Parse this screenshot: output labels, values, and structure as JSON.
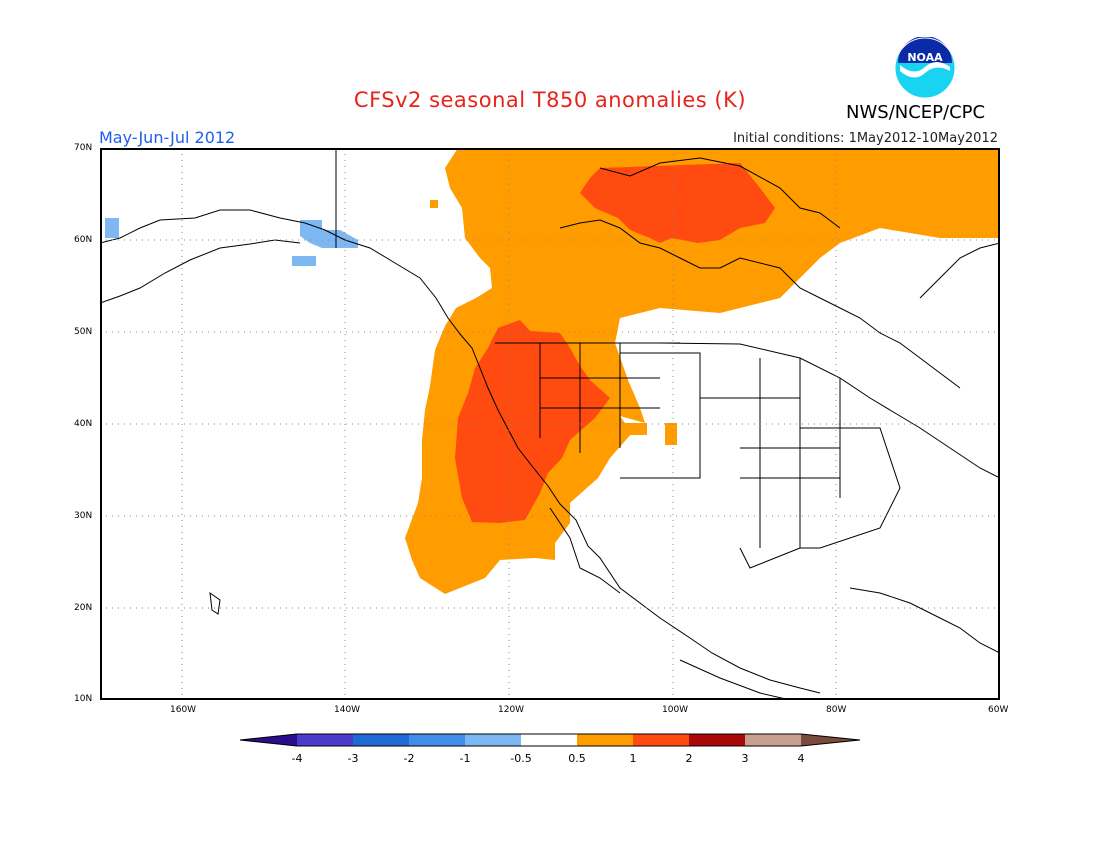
{
  "header": {
    "title": "CFSv2 seasonal T850 anomalies (K)",
    "title_color": "#e8231a",
    "agency": "NWS/NCEP/CPC",
    "season": "May-Jun-Jul 2012",
    "season_color": "#1f5ff0",
    "init": "Initial conditions: 1May2012-10May2012",
    "logo_text": "NOAA"
  },
  "map": {
    "lat_labels": [
      "70N",
      "60N",
      "50N",
      "40N",
      "30N",
      "20N",
      "10N"
    ],
    "lon_labels": [
      "160W",
      "140W",
      "120W",
      "100W",
      "80W",
      "60W"
    ],
    "projection": "lat-lon",
    "extent": {
      "lon": [
        -170,
        -60
      ],
      "lat": [
        10,
        70
      ]
    },
    "grid": "dotted"
  },
  "colorbar": {
    "labels": [
      "-4",
      "-3",
      "-2",
      "-1",
      "-0.5",
      "0.5",
      "1",
      "2",
      "3",
      "4"
    ],
    "colors": [
      "#2a0d8c",
      "#4a3cc8",
      "#1e6ad6",
      "#3f8ee9",
      "#7db8f2",
      "#ffffff",
      "#ff9c00",
      "#ff4a10",
      "#a80808",
      "#c8a090",
      "#7a4a3a"
    ]
  },
  "legend": {
    "colors": {
      "cold": "#7db8f2",
      "warm_0_5_1": "#ff9c00",
      "warm_1_2": "#ff4a10"
    }
  }
}
